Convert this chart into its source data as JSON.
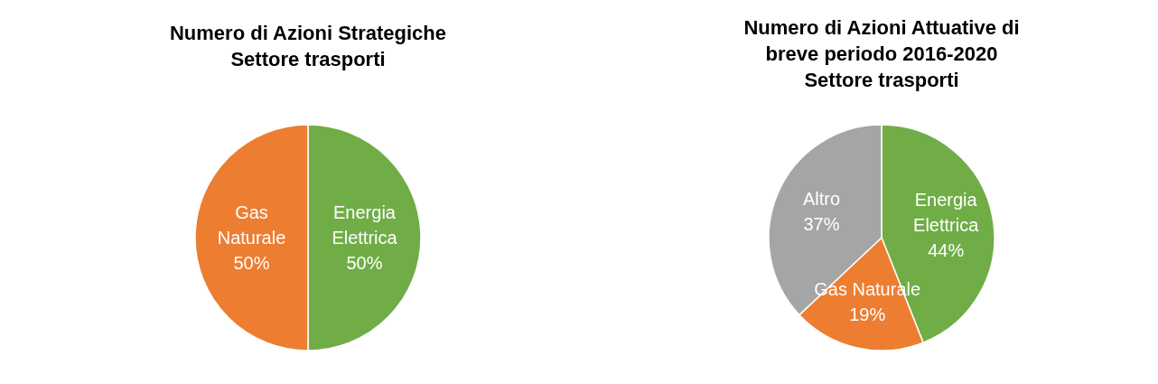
{
  "chart_data": [
    {
      "type": "pie",
      "title": "Numero di Azioni Strategiche\nSettore trasporti",
      "categories": [
        "Energia Elettrica",
        "Gas Naturale"
      ],
      "values": [
        50,
        50
      ],
      "colors": [
        "#70ad47",
        "#ed7d31"
      ],
      "value_labels": [
        "50%",
        "50%"
      ]
    },
    {
      "type": "pie",
      "title": "Numero di Azioni Attuative di\nbreve periodo 2016-2020\nSettore trasporti",
      "categories": [
        "Energia Elettrica",
        "Gas Naturale",
        "Altro"
      ],
      "values": [
        44,
        19,
        37
      ],
      "colors": [
        "#70ad47",
        "#ed7d31",
        "#a5a5a5"
      ],
      "value_labels": [
        "44%",
        "19%",
        "37%"
      ]
    }
  ]
}
